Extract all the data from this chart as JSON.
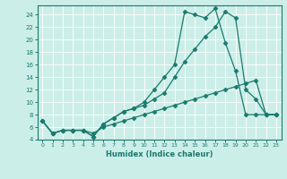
{
  "xlabel": "Humidex (Indice chaleur)",
  "bg_color": "#cceee8",
  "line_color": "#1a7a6e",
  "grid_color": "#ffffff",
  "xlim": [
    -0.5,
    23.5
  ],
  "ylim": [
    4,
    25.5
  ],
  "xticks": [
    0,
    1,
    2,
    3,
    4,
    5,
    6,
    7,
    8,
    9,
    10,
    11,
    12,
    13,
    14,
    15,
    16,
    17,
    18,
    19,
    20,
    21,
    22,
    23
  ],
  "yticks": [
    4,
    6,
    8,
    10,
    12,
    14,
    16,
    18,
    20,
    22,
    24
  ],
  "line1_x": [
    0,
    1,
    2,
    3,
    4,
    5,
    6,
    7,
    8,
    9,
    10,
    11,
    12,
    13,
    14,
    15,
    16,
    17,
    18,
    19,
    20,
    21,
    22,
    23
  ],
  "line1_y": [
    7,
    5,
    5.5,
    5.5,
    5.5,
    5.0,
    6.0,
    6.5,
    7.0,
    7.5,
    8.0,
    8.5,
    9.0,
    9.5,
    10.0,
    10.5,
    11.0,
    11.5,
    12.0,
    12.5,
    13.0,
    13.5,
    8.0,
    8.0
  ],
  "line2_x": [
    0,
    1,
    2,
    3,
    4,
    5,
    6,
    7,
    8,
    9,
    10,
    11,
    12,
    13,
    14,
    15,
    16,
    17,
    18,
    19,
    20,
    21,
    22,
    23
  ],
  "line2_y": [
    7,
    5,
    5.5,
    5.5,
    5.5,
    4.5,
    6.5,
    7.5,
    8.5,
    9.0,
    9.5,
    10.5,
    11.5,
    14.0,
    16.5,
    18.5,
    20.5,
    22.0,
    24.5,
    23.5,
    12.0,
    10.5,
    8.0,
    8.0
  ],
  "line3_x": [
    0,
    1,
    2,
    3,
    4,
    5,
    6,
    7,
    8,
    9,
    10,
    11,
    12,
    13,
    14,
    15,
    16,
    17,
    18,
    19,
    20,
    21,
    22,
    23
  ],
  "line3_y": [
    7,
    5,
    5.5,
    5.5,
    5.5,
    4.5,
    6.5,
    7.5,
    8.5,
    9.0,
    10.0,
    12.0,
    14.0,
    16.0,
    24.5,
    24.0,
    23.5,
    25.0,
    19.5,
    15.0,
    8.0,
    8.0,
    8.0,
    8.0
  ]
}
